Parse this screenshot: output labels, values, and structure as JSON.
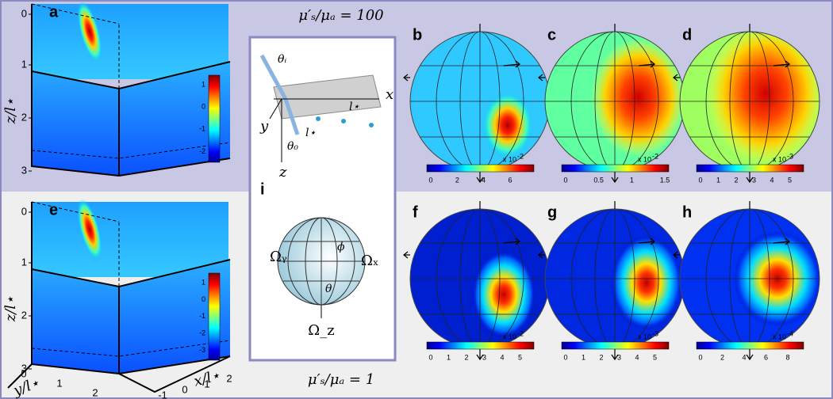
{
  "ratio_top": "μ′ₛ/μₐ = 100",
  "ratio_bottom": "μ′ₛ/μₐ = 1",
  "cube_panels": [
    {
      "letter": "a",
      "z_label": "z/l⋆",
      "z_ticks": [
        0,
        1,
        2,
        3
      ],
      "colorbar_ticks": [
        1,
        0,
        -1,
        -2
      ]
    },
    {
      "letter": "e",
      "z_label": "z/l⋆",
      "z_ticks": [
        0,
        1,
        2,
        3
      ],
      "colorbar_ticks": [
        1,
        0,
        -1,
        -2,
        -3
      ],
      "x_label": "x/l⋆",
      "x_ticks": [
        -1,
        0,
        1,
        2
      ],
      "y_label": "y/l⋆",
      "y_ticks": [
        0,
        1,
        2
      ]
    }
  ],
  "sphere_panels": [
    {
      "letter": "b",
      "colorbar_ticks": [
        0,
        2,
        4,
        6
      ],
      "scale": "x 10",
      "exponent": "-2"
    },
    {
      "letter": "c",
      "colorbar_ticks": [
        0,
        0.5,
        1,
        1.5
      ],
      "scale": "x 10",
      "exponent": "-2"
    },
    {
      "letter": "d",
      "colorbar_ticks": [
        0,
        1,
        2,
        3,
        4,
        5
      ],
      "scale": "x 10",
      "exponent": "-3"
    },
    {
      "letter": "f",
      "colorbar_ticks": [
        0,
        1,
        2,
        3,
        4,
        5
      ],
      "scale": "x 10",
      "exponent": "-2"
    },
    {
      "letter": "g",
      "colorbar_ticks": [
        0,
        1,
        2,
        3,
        4,
        5
      ],
      "scale": "x 10",
      "exponent": "-3"
    },
    {
      "letter": "h",
      "colorbar_ticks": [
        0,
        2,
        4,
        6,
        8
      ],
      "scale": "x 10",
      "exponent": "-4"
    }
  ],
  "schematic": {
    "theta_i": "θᵢ",
    "theta_0": "θ₀",
    "l_star_a": "l⋆",
    "l_star_b": "l⋆",
    "x": "x",
    "y": "y",
    "z": "z"
  },
  "inset": {
    "letter": "i",
    "omega_y": "Ωᵧ",
    "omega_x": "Ωₓ",
    "omega_z": "Ω_z",
    "phi": "ϕ",
    "theta": "θ"
  }
}
